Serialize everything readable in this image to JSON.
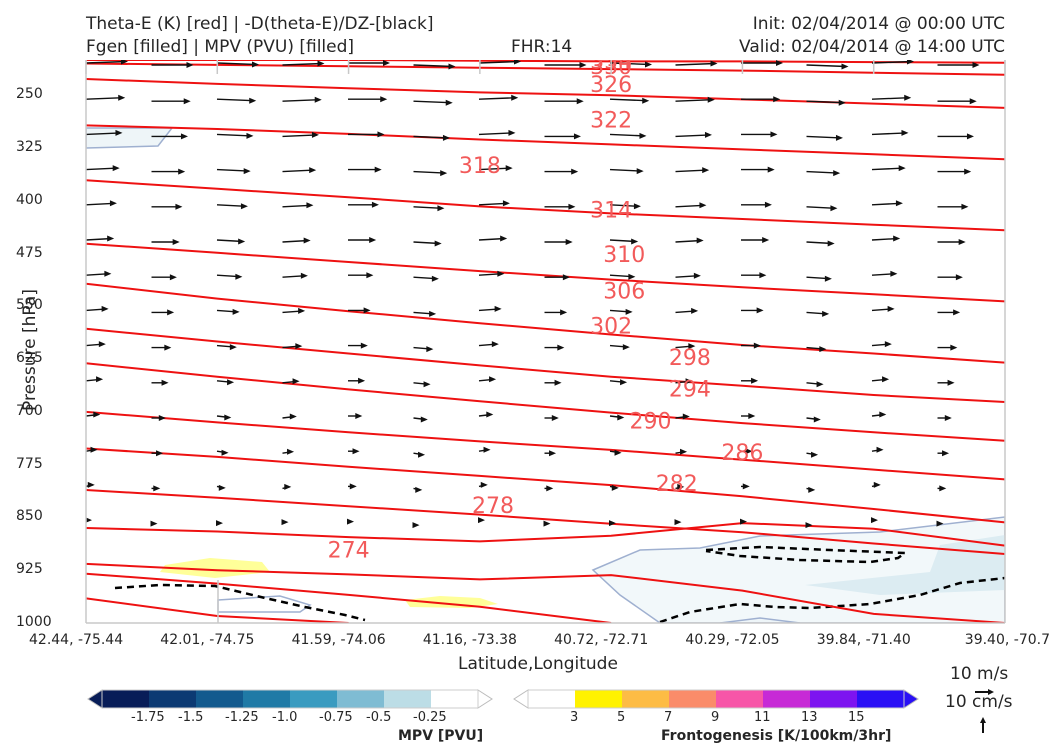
{
  "header": {
    "left_line1": "Theta-E (K) [red] | -D(theta-E)/DZ-[black]",
    "left_line2": "Fgen [filled] | MPV (PVU) [filled]",
    "center": "FHR:14",
    "init": "Init: 02/04/2014 @ 00:00 UTC",
    "valid": "Valid: 02/04/2014 @ 14:00 UTC"
  },
  "chart_data": {
    "type": "cross-section",
    "xlabel": "Latitude,Longitude",
    "ylabel": "Pressure [hPa]",
    "x_ticks": [
      "42.44, -75.44",
      "42.01, -74.75",
      "41.59, -74.06",
      "41.16, -73.38",
      "40.72, -72.71",
      "40.29, -72.05",
      "39.84, -71.40",
      "39.40, -70.7"
    ],
    "y_ticks": [
      250,
      325,
      400,
      475,
      550,
      625,
      700,
      775,
      850,
      925,
      1000
    ],
    "ylim": [
      1000,
      200
    ],
    "theta_e_contours": [
      {
        "value": 334,
        "y": [
          200,
          200,
          200,
          201,
          202,
          202,
          203,
          204
        ]
      },
      {
        "value": 330,
        "y": [
          205,
          207,
          209,
          211,
          213,
          215,
          218,
          221
        ]
      },
      {
        "value": 326,
        "y": [
          227,
          234,
          240,
          246,
          250,
          256,
          262,
          268
        ]
      },
      {
        "value": 322,
        "y": [
          293,
          298,
          305,
          313,
          320,
          327,
          334,
          341
        ]
      },
      {
        "value": 318,
        "y": [
          371,
          383,
          395,
          408,
          418,
          426,
          434,
          442
        ]
      },
      {
        "value": 314,
        "y": [
          461,
          474,
          487,
          500,
          512,
          523,
          533,
          543
        ]
      },
      {
        "value": 310,
        "y": [
          518,
          539,
          557,
          574,
          590,
          605,
          617,
          630
        ]
      },
      {
        "value": 306,
        "y": [
          582,
          600,
          617,
          634,
          650,
          663,
          676,
          686
        ]
      },
      {
        "value": 302,
        "y": [
          631,
          650,
          668,
          685,
          701,
          716,
          729,
          741
        ]
      },
      {
        "value": 298,
        "y": [
          700,
          715,
          729,
          742,
          754,
          768,
          782,
          796
        ]
      },
      {
        "value": 294,
        "y": [
          752,
          764,
          778,
          791,
          804,
          820,
          838,
          857
        ]
      },
      {
        "value": 290,
        "y": [
          811,
          822,
          834,
          846,
          859,
          871,
          887,
          902
        ]
      },
      {
        "value": 286,
        "y": [
          865,
          870,
          878,
          884,
          876,
          858,
          866,
          890
        ]
      },
      {
        "value": 282,
        "y": [
          916,
          925,
          931,
          938,
          932,
          954,
          987,
          1000
        ]
      },
      {
        "value": 278,
        "y": [
          930,
          944,
          960,
          977,
          1000
        ]
      },
      {
        "value": 274,
        "y": [
          965,
          990,
          1000
        ]
      }
    ],
    "theta_e_labels": [
      {
        "text": "334",
        "lat_index": 4.0,
        "p": 205
      },
      {
        "text": "330",
        "lat_index": 4.0,
        "p": 216
      },
      {
        "text": "326",
        "lat_index": 4.0,
        "p": 252
      },
      {
        "text": "322",
        "lat_index": 4.0,
        "p": 323
      },
      {
        "text": "318",
        "lat_index": 3.0,
        "p": 414
      },
      {
        "text": "314",
        "lat_index": 4.0,
        "p": 503
      },
      {
        "text": "310",
        "lat_index": 4.1,
        "p": 592
      },
      {
        "text": "306",
        "lat_index": 4.1,
        "p": 665
      },
      {
        "text": "302",
        "lat_index": 4.0,
        "p": 735
      },
      {
        "text": "298",
        "lat_index": 4.6,
        "p": 798
      },
      {
        "text": "294",
        "lat_index": 4.6,
        "p": 861
      },
      {
        "text": "290",
        "lat_index": 4.3,
        "p": 925
      },
      {
        "text": "286",
        "lat_index": 5.0,
        "p": 988
      },
      {
        "text": "282",
        "lat_index": 4.5,
        "p": 1050
      },
      {
        "text": "278",
        "lat_index": 3.1,
        "p": 1094
      },
      {
        "text": "274",
        "lat_index": 2.0,
        "p": 1183
      }
    ],
    "colorbar_mpv": {
      "label": "MPV [PVU]",
      "ticks": [
        "-1.75",
        "-1.5",
        "-1.25",
        "-1.0",
        "-0.75",
        "-0.5",
        "-0.25"
      ],
      "colors": [
        "#081d58",
        "#0c3a73",
        "#135a8e",
        "#1f7aa6",
        "#3a9bc0",
        "#7fbcd3",
        "#bcdde6",
        "#ffffff"
      ]
    },
    "colorbar_fgen": {
      "label": "Frontogenesis [K/100km/3hr]",
      "ticks": [
        "3",
        "5",
        "7",
        "9",
        "11",
        "13",
        "15"
      ],
      "colors": [
        "#ffffff",
        "#fff200",
        "#fdbc45",
        "#fa8c6a",
        "#f756a8",
        "#c72ad6",
        "#7d14f0",
        "#2a10f5"
      ]
    },
    "vector_key": {
      "wind": "10 m/s",
      "vertical": "10 cm/s"
    },
    "colors": {
      "theta_e": "#ee1111",
      "label": "#f25a5a",
      "arrows": "#111111",
      "mpv_fill": "#f0f7f9",
      "fgen_fill": "#ffff99"
    }
  }
}
